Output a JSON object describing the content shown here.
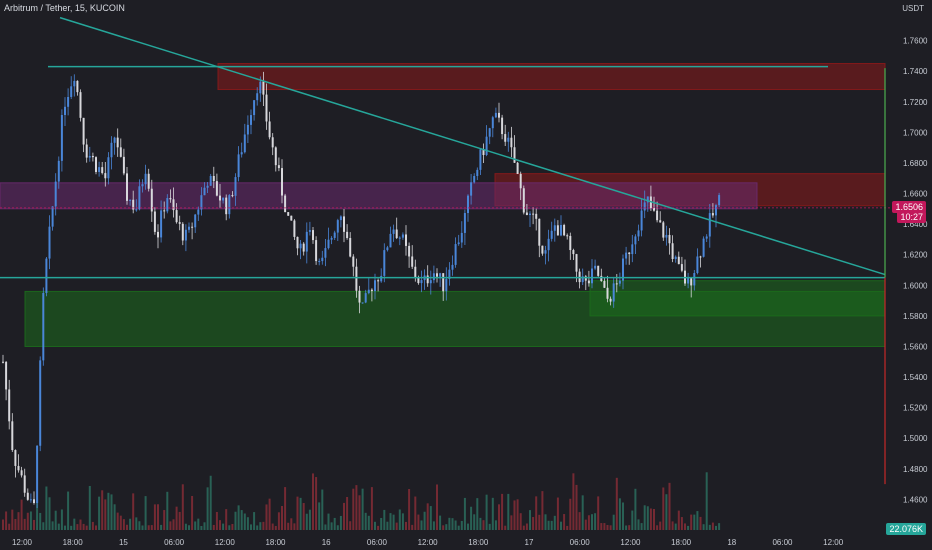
{
  "title": "Arbitrum / Tether, 15, KUCOIN",
  "currency": "USDT",
  "last_price_label": "1.6506",
  "countdown_label": "10:27",
  "volume_label": "22.076K",
  "colors": {
    "background": "#1e1e24",
    "up": "#4a86d8",
    "down": "#d8d8dc",
    "trendline": "#26a69a",
    "supply_zone": "#8b1a1a",
    "demand_zone": "#1c6b1c",
    "mid_zone": "#6a2a6e",
    "price_tag": "#c2185b"
  },
  "chart_data": {
    "type": "candlestick",
    "title": "Arbitrum / Tether, 15, KUCOIN",
    "ylim": [
      1.44,
      1.78
    ],
    "y_ticks": [
      "1.7600",
      "1.7400",
      "1.7200",
      "1.7000",
      "1.6800",
      "1.6600",
      "1.6400",
      "1.6200",
      "1.6000",
      "1.5800",
      "1.5600",
      "1.5400",
      "1.5200",
      "1.5000",
      "1.4800",
      "1.4600"
    ],
    "x_ticks": [
      "12:00",
      "18:00",
      "15",
      "06:00",
      "12:00",
      "18:00",
      "16",
      "06:00",
      "12:00",
      "18:00",
      "17",
      "06:00",
      "12:00",
      "18:00",
      "18",
      "06:00",
      "12:00"
    ],
    "price_path": [
      1.55,
      1.49,
      1.47,
      1.45,
      1.6,
      1.66,
      1.72,
      1.74,
      1.69,
      1.68,
      1.67,
      1.7,
      1.66,
      1.65,
      1.68,
      1.63,
      1.66,
      1.64,
      1.63,
      1.65,
      1.67,
      1.66,
      1.65,
      1.68,
      1.71,
      1.735,
      1.7,
      1.67,
      1.64,
      1.62,
      1.64,
      1.61,
      1.63,
      1.65,
      1.62,
      1.58,
      1.6,
      1.61,
      1.64,
      1.63,
      1.61,
      1.6,
      1.61,
      1.6,
      1.62,
      1.64,
      1.67,
      1.69,
      1.71,
      1.7,
      1.68,
      1.65,
      1.64,
      1.62,
      1.64,
      1.63,
      1.61,
      1.6,
      1.61,
      1.59,
      1.6,
      1.62,
      1.64,
      1.655,
      1.64,
      1.63,
      1.61,
      1.6,
      1.62,
      1.64,
      1.655
    ],
    "zones": [
      {
        "name": "supply-top",
        "from": 1.728,
        "to": 1.745
      },
      {
        "name": "supply-mid",
        "from": 1.652,
        "to": 1.673
      },
      {
        "name": "purple-band",
        "from": 1.65,
        "to": 1.667
      },
      {
        "name": "demand-lower",
        "from": 1.56,
        "to": 1.596
      },
      {
        "name": "demand-right",
        "from": 1.58,
        "to": 1.603
      }
    ],
    "levels": {
      "resistance": 1.743,
      "support": 1.605,
      "last": 1.6506
    },
    "trendline": {
      "start": 1.775,
      "end": 1.607
    }
  }
}
